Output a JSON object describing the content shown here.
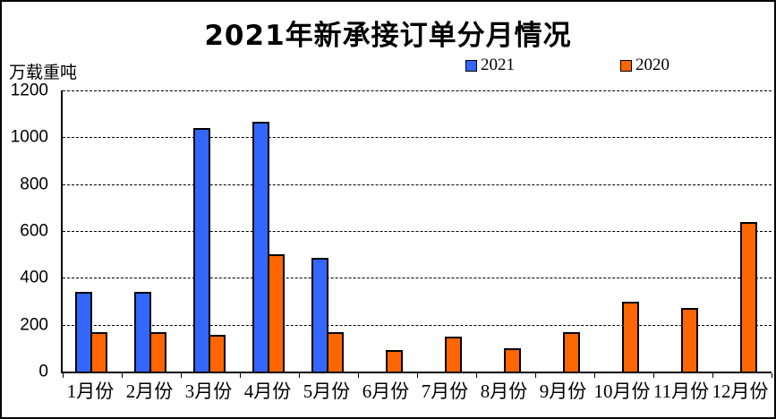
{
  "window": {
    "background": "#FFFFFF",
    "border_color": "#000000"
  },
  "chart_data": {
    "type": "bar",
    "title": "2021年新承接订单分月情况",
    "ylabel": "万载重吨",
    "xlabel": "",
    "categories": [
      "1月份",
      "2月份",
      "3月份",
      "4月份",
      "5月份",
      "6月份",
      "7月份",
      "8月份",
      "9月份",
      "10月份",
      "11月份",
      "12月份"
    ],
    "series": [
      {
        "name": "2021",
        "color": "#3366FF",
        "values": [
          340,
          340,
          1040,
          1065,
          485,
          null,
          null,
          null,
          null,
          null,
          null,
          null
        ]
      },
      {
        "name": "2020",
        "color": "#FF6600",
        "values": [
          170,
          170,
          155,
          500,
          170,
          90,
          150,
          100,
          170,
          300,
          270,
          640
        ]
      }
    ],
    "ylim": [
      0,
      1200
    ],
    "yticks": [
      0,
      200,
      400,
      600,
      800,
      1000,
      1200
    ],
    "grid": "dashed-horizontal",
    "legend_position": "top-center",
    "bar_border_color": "#000000"
  }
}
